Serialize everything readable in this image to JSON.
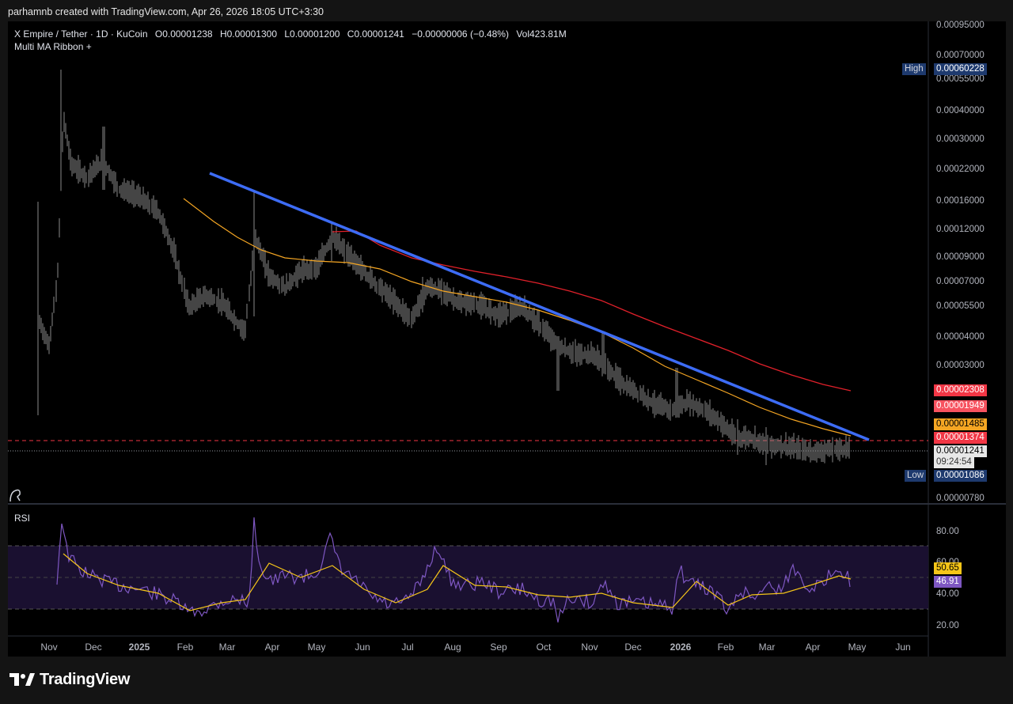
{
  "header": {
    "attribution": "parhamnb created with TradingView.com, Apr 26, 2026 18:05 UTC+3:30"
  },
  "legend": {
    "symbol": "X Empire / Tether · 1D · KuCoin",
    "open": "O0.00001238",
    "high": "H0.00001300",
    "low": "L0.00001200",
    "close": "C0.00001241",
    "change": "−0.00000006 (−0.48%)",
    "volume": "Vol423.81M",
    "indicator": "Multi MA Ribbon +"
  },
  "price_axis": {
    "ticks": [
      "0.00095000",
      "0.00070000",
      "0.00055000",
      "0.00040000",
      "0.00030000",
      "0.00022000",
      "0.00016000",
      "0.00012000",
      "0.00009000",
      "0.00007000",
      "0.00005500",
      "0.00004000",
      "0.00003000",
      "0.00000780"
    ],
    "high_label": "High",
    "high_value": "0.00060228",
    "low_label": "Low",
    "low_value": "0.00001086",
    "ma_tags": [
      {
        "value": "0.00002308",
        "color": "#f23645"
      },
      {
        "value": "0.00001949",
        "color": "#f7525f"
      },
      {
        "value": "0.00001485",
        "color": "#f5a623"
      },
      {
        "value": "0.00001374",
        "color": "#f23645"
      }
    ],
    "last_price": "0.00001241",
    "countdown": "09:24:54"
  },
  "rsi": {
    "label": "RSI",
    "ticks": [
      "80.00",
      "60.00",
      "40.00",
      "20.00"
    ],
    "ma_value": "50.65",
    "rsi_value": "46.91"
  },
  "time_axis": [
    "Nov",
    "Dec",
    "2025",
    "Feb",
    "Mar",
    "Apr",
    "May",
    "Jun",
    "Jul",
    "Aug",
    "Sep",
    "Oct",
    "Nov",
    "Dec",
    "2026",
    "Feb",
    "Mar",
    "Apr",
    "May",
    "Jun"
  ],
  "footer": {
    "brand": "TradingView"
  },
  "chart_data": {
    "type": "line",
    "title": "X Empire / Tether · 1D · KuCoin",
    "log_scale": true,
    "x": [
      "2024-10",
      "2024-11",
      "2024-12",
      "2025-01",
      "2025-02",
      "2025-03",
      "2025-04",
      "2025-05",
      "2025-06",
      "2025-07",
      "2025-08",
      "2025-09",
      "2025-10",
      "2025-11",
      "2025-12",
      "2026-01",
      "2026-02",
      "2026-03",
      "2026-04"
    ],
    "series": [
      {
        "name": "",
        "values": [
          8e-05,
          0.00024,
          0.00018,
          0.00013,
          5e-05,
          4.3e-05,
          6.8e-05,
          9e-05,
          6.2e-05,
          4.9e-05,
          5.8e-05,
          4.8e-05,
          3e-05,
          2.4e-05,
          1.9e-05,
          1.7e-05,
          1.3e-05,
          1.28e-05,
          1.24e-05
        ]
      }
    ],
    "ylim": [
      7.8e-06,
      0.00095
    ],
    "high": 0.00060228,
    "low": 1.086e-05,
    "last": 1.241e-05
  }
}
